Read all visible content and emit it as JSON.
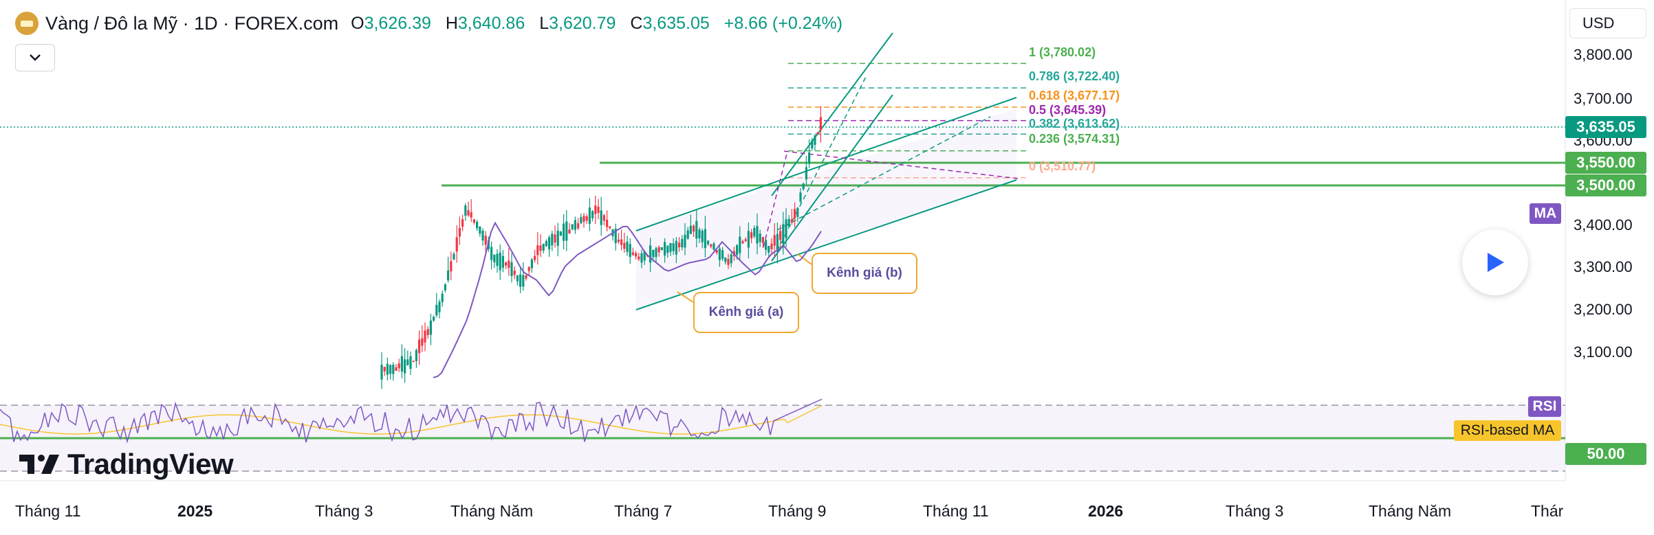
{
  "header": {
    "symbol_title": "Vàng / Đô la Mỹ · 1D · FOREX.com",
    "ohlc": [
      {
        "label": "O",
        "value": "3,626.39"
      },
      {
        "label": "H",
        "value": "3,640.86"
      },
      {
        "label": "L",
        "value": "3,620.79"
      },
      {
        "label": "C",
        "value": "3,635.05"
      }
    ],
    "change": "+8.66 (+0.24%)",
    "currency": "USD"
  },
  "colors": {
    "up": "#089981",
    "down": "#f23645",
    "ma": "#7e57c2",
    "rsi_ma": "#f7c52b",
    "support": "#4caf50",
    "channel": "#089981"
  },
  "chart_data": {
    "type": "candlestick",
    "y_ticks": [
      "3,800.00",
      "3,700.00",
      "3,600.00",
      "3,400.00",
      "3,300.00",
      "3,200.00",
      "3,100.00"
    ],
    "ylim": [
      3050,
      3880
    ],
    "x_ticks": [
      "Tháng 11",
      "2025",
      "Tháng 3",
      "Tháng Năm",
      "Tháng 7",
      "Tháng 9",
      "Tháng 11",
      "2026",
      "Tháng 3",
      "Tháng Năm",
      "Thár"
    ],
    "last_price": "3,635.05",
    "support_levels": [
      "3,550.00",
      "3,500.00"
    ],
    "fibonacci": [
      {
        "ratio": "1",
        "price": "3,780.02",
        "color": "#4caf50"
      },
      {
        "ratio": "0.786",
        "price": "3,722.40",
        "color": "#26a69a"
      },
      {
        "ratio": "0.618",
        "price": "3,677.17",
        "color": "#f7921b"
      },
      {
        "ratio": "0.5",
        "price": "3,645.39",
        "color": "#9c27b0"
      },
      {
        "ratio": "0.382",
        "price": "3,613.62",
        "color": "#26a69a"
      },
      {
        "ratio": "0.236",
        "price": "3,574.31",
        "color": "#4caf50"
      },
      {
        "ratio": "0",
        "price": "3,510.77",
        "color": "#ffab91"
      }
    ],
    "series": [
      {
        "name": "MA"
      },
      {
        "name": "RSI"
      },
      {
        "name": "RSI-based MA"
      }
    ],
    "rsi_level": "50.00",
    "annotations": [
      "Kênh giá (a)",
      "Kênh giá (b)"
    ]
  },
  "brand": "TradingView"
}
